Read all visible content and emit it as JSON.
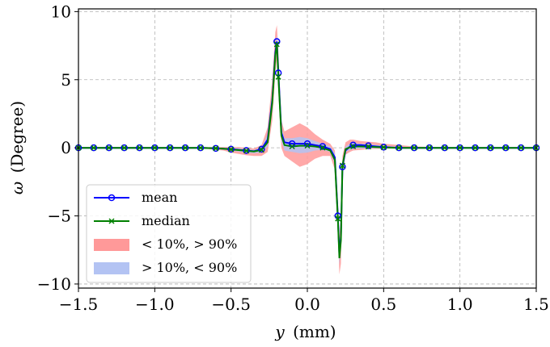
{
  "chart_data": {
    "type": "line",
    "xlabel_var": "y",
    "xlabel_unit": "(mm)",
    "ylabel_var": "ω",
    "ylabel_unit": "(Degree)",
    "xlim": [
      -1.5,
      1.5
    ],
    "ylim": [
      -10.3,
      10.2
    ],
    "xticks": [
      -1.5,
      -1.0,
      -0.5,
      0.0,
      0.5,
      1.0,
      1.5
    ],
    "xtick_labels": [
      "−1.5",
      "−1.0",
      "−0.5",
      "0.0",
      "0.5",
      "1.0",
      "1.5"
    ],
    "yticks": [
      -10,
      -5,
      0,
      5,
      10
    ],
    "ytick_labels": [
      "−10",
      "−5",
      "0",
      "5",
      "10"
    ],
    "grid": true,
    "legend_position": "lower-left",
    "x": [
      -1.5,
      -1.45,
      -1.4,
      -1.35,
      -1.3,
      -1.25,
      -1.2,
      -1.15,
      -1.1,
      -1.05,
      -1.0,
      -0.95,
      -0.9,
      -0.85,
      -0.8,
      -0.75,
      -0.7,
      -0.65,
      -0.6,
      -0.55,
      -0.5,
      -0.45,
      -0.4,
      -0.35,
      -0.3,
      -0.26,
      -0.23,
      -0.21,
      -0.2,
      -0.19,
      -0.17,
      -0.15,
      -0.1,
      -0.05,
      0.0,
      0.05,
      0.1,
      0.15,
      0.18,
      0.2,
      0.21,
      0.22,
      0.23,
      0.25,
      0.28,
      0.3,
      0.35,
      0.4,
      0.45,
      0.5,
      0.55,
      0.6,
      0.65,
      0.7,
      0.75,
      0.8,
      0.85,
      0.9,
      0.95,
      1.0,
      1.05,
      1.1,
      1.15,
      1.2,
      1.25,
      1.3,
      1.35,
      1.4,
      1.45,
      1.5
    ],
    "series": [
      {
        "name": "mean",
        "color": "#0000ff",
        "marker": "circle",
        "values": [
          0,
          0,
          0,
          0,
          0,
          0,
          0,
          0,
          0,
          0,
          0,
          0,
          0,
          0,
          0,
          0,
          0,
          -0.02,
          -0.04,
          -0.07,
          -0.1,
          -0.15,
          -0.2,
          -0.25,
          -0.1,
          0.6,
          3.5,
          7.0,
          7.8,
          5.5,
          1.1,
          0.4,
          0.3,
          0.3,
          0.3,
          0.2,
          0.1,
          -0.1,
          -0.7,
          -5.0,
          -7.9,
          -6.5,
          -1.4,
          -0.2,
          0.1,
          0.2,
          0.2,
          0.15,
          0.1,
          0.05,
          0.02,
          0,
          0,
          0,
          0,
          0,
          0,
          0,
          0,
          0,
          0,
          0,
          0,
          0,
          0,
          0,
          0,
          0,
          0,
          0
        ]
      },
      {
        "name": "median",
        "color": "#008000",
        "marker": "x",
        "values": [
          0,
          0,
          0,
          0,
          0,
          0,
          0,
          0,
          0,
          0,
          0,
          0,
          0,
          0,
          0,
          0,
          0,
          -0.02,
          -0.04,
          -0.07,
          -0.12,
          -0.17,
          -0.22,
          -0.27,
          -0.15,
          0.4,
          3.3,
          6.8,
          7.6,
          5.2,
          0.9,
          0.2,
          0.1,
          0.15,
          0.15,
          0.1,
          0,
          -0.2,
          -0.9,
          -5.2,
          -8.1,
          -6.8,
          -1.3,
          -0.1,
          0.05,
          0.1,
          0.1,
          0.08,
          0.05,
          0.03,
          0.01,
          0,
          0,
          0,
          0,
          0,
          0,
          0,
          0,
          0,
          0,
          0,
          0,
          0,
          0,
          0,
          0,
          0,
          0,
          0
        ]
      },
      {
        "name": "< 10%, > 90%",
        "color": "#ff9999",
        "band_upper": [
          0.05,
          0.05,
          0.05,
          0.05,
          0.05,
          0.05,
          0.05,
          0.05,
          0.05,
          0.05,
          0.05,
          0.05,
          0.05,
          0.05,
          0.05,
          0.05,
          0.05,
          0.05,
          0.05,
          0.05,
          0.05,
          0.05,
          0.0,
          -0.05,
          0.2,
          1.5,
          5.0,
          8.5,
          9.0,
          7.0,
          2.0,
          1.2,
          1.5,
          1.8,
          1.5,
          1.0,
          0.6,
          0.3,
          -0.2,
          -3.8,
          -6.5,
          -5.0,
          -0.6,
          0.4,
          0.6,
          0.6,
          0.5,
          0.45,
          0.4,
          0.3,
          0.25,
          0.2,
          0.15,
          0.1,
          0.08,
          0.06,
          0.05,
          0.05,
          0.05,
          0.05,
          0.05,
          0.05,
          0.05,
          0.05,
          0.05,
          0.05,
          0.05,
          0.05,
          0.05,
          0.05
        ],
        "band_lower": [
          -0.05,
          -0.05,
          -0.05,
          -0.05,
          -0.05,
          -0.05,
          -0.05,
          -0.05,
          -0.05,
          -0.05,
          -0.05,
          -0.05,
          -0.05,
          -0.05,
          -0.05,
          -0.05,
          -0.05,
          -0.1,
          -0.15,
          -0.2,
          -0.35,
          -0.45,
          -0.55,
          -0.6,
          -0.6,
          -0.3,
          2.0,
          5.5,
          6.5,
          4.0,
          0.0,
          -0.6,
          -1.0,
          -1.4,
          -1.2,
          -0.8,
          -0.6,
          -0.6,
          -1.6,
          -6.0,
          -9.3,
          -8.5,
          -2.0,
          -0.5,
          -0.3,
          -0.2,
          -0.15,
          -0.1,
          -0.08,
          -0.06,
          -0.05,
          -0.05,
          -0.05,
          -0.05,
          -0.05,
          -0.05,
          -0.05,
          -0.05,
          -0.05,
          -0.05,
          -0.05,
          -0.05,
          -0.05,
          -0.05,
          -0.05,
          -0.05,
          -0.05,
          -0.05,
          -0.05,
          -0.05
        ]
      },
      {
        "name": "> 10%, < 90%",
        "color": "#b3c3f3",
        "band_upper": [
          0.02,
          0.02,
          0.02,
          0.02,
          0.02,
          0.02,
          0.02,
          0.02,
          0.02,
          0.02,
          0.02,
          0.02,
          0.02,
          0.02,
          0.02,
          0.02,
          0.02,
          0.02,
          0.0,
          -0.02,
          -0.02,
          -0.05,
          -0.1,
          -0.15,
          0.0,
          1.0,
          4.2,
          7.6,
          8.3,
          6.2,
          1.5,
          0.7,
          0.7,
          0.8,
          0.7,
          0.5,
          0.3,
          0.1,
          -0.4,
          -4.4,
          -7.2,
          -5.8,
          -1.0,
          0.1,
          0.3,
          0.35,
          0.3,
          0.25,
          0.2,
          0.15,
          0.1,
          0.06,
          0.04,
          0.03,
          0.02,
          0.02,
          0.02,
          0.02,
          0.02,
          0.02,
          0.02,
          0.02,
          0.02,
          0.02,
          0.02,
          0.02,
          0.02,
          0.02,
          0.02,
          0.02
        ],
        "band_lower": [
          -0.02,
          -0.02,
          -0.02,
          -0.02,
          -0.02,
          -0.02,
          -0.02,
          -0.02,
          -0.02,
          -0.02,
          -0.02,
          -0.02,
          -0.02,
          -0.02,
          -0.02,
          -0.02,
          -0.02,
          -0.06,
          -0.1,
          -0.12,
          -0.2,
          -0.28,
          -0.35,
          -0.4,
          -0.35,
          0.1,
          2.7,
          6.2,
          7.1,
          4.7,
          0.5,
          -0.2,
          -0.3,
          -0.4,
          -0.35,
          -0.2,
          -0.15,
          -0.3,
          -1.2,
          -5.6,
          -8.6,
          -7.4,
          -1.7,
          -0.3,
          -0.15,
          -0.08,
          -0.05,
          -0.04,
          -0.03,
          -0.02,
          -0.02,
          -0.02,
          -0.02,
          -0.02,
          -0.02,
          -0.02,
          -0.02,
          -0.02,
          -0.02,
          -0.02,
          -0.02,
          -0.02,
          -0.02,
          -0.02,
          -0.02,
          -0.02,
          -0.02,
          -0.02,
          -0.02,
          -0.02
        ]
      }
    ],
    "legend": [
      {
        "label": "mean",
        "kind": "line-circle",
        "color": "#0000ff"
      },
      {
        "label": "median",
        "kind": "line-x",
        "color": "#008000"
      },
      {
        "label": "< 10%, > 90%",
        "kind": "patch",
        "color": "#ff9999"
      },
      {
        "label": "> 10%, < 90%",
        "kind": "patch",
        "color": "#b3c3f3"
      }
    ]
  }
}
